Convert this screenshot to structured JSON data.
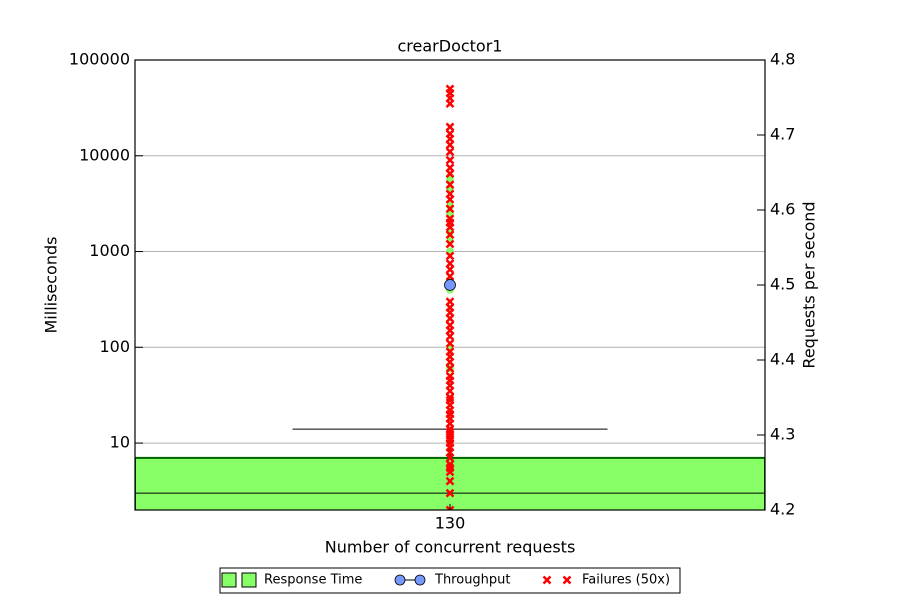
{
  "chart_data": {
    "type": "boxplot",
    "title": "crearDoctor1",
    "xlabel": "Number of concurrent requests",
    "ylabel": "Milliseconds",
    "y2label": "Requests per second",
    "categories": [
      "130"
    ],
    "log_y": true,
    "grid": true,
    "legend": "lower center",
    "ylim": [
      2,
      100000
    ],
    "yticks": [
      10,
      100,
      1000,
      10000,
      100000
    ],
    "y2lim": [
      4.2,
      4.8
    ],
    "y2ticks": [
      4.2,
      4.3,
      4.4,
      4.5,
      4.6,
      4.7,
      4.8
    ],
    "series": [
      {
        "name": "Response Time",
        "color": "#88ff66",
        "q1": [
          1
        ],
        "median": [
          3
        ],
        "q3": [
          7
        ],
        "whisker_high": [
          14
        ],
        "fliers": [
          [
            60,
            100,
            400,
            450,
            500,
            1000,
            1300,
            1600,
            2500,
            3000,
            4500,
            5500,
            6000
          ]
        ]
      },
      {
        "name": "Throughput",
        "color": "#7799ff",
        "axis": "y2",
        "values": [
          4.5
        ]
      },
      {
        "name": "Failures (50x)",
        "color": "#ff0000",
        "values": [
          [
            2,
            3,
            4,
            5,
            5.5,
            6,
            7,
            8,
            9,
            10,
            11,
            12,
            13,
            14,
            16,
            18,
            20,
            22,
            25,
            28,
            30,
            35,
            40,
            45,
            50,
            60,
            70,
            80,
            90,
            110,
            130,
            150,
            170,
            200,
            230,
            260,
            300,
            550,
            650,
            750,
            900,
            1200,
            1500,
            1800,
            2000,
            2200,
            2800,
            3500,
            4000,
            5000,
            6500,
            7500,
            9000,
            11000,
            13000,
            15000,
            17000,
            20000,
            35000,
            40000,
            45000,
            50000
          ]
        ]
      }
    ]
  }
}
